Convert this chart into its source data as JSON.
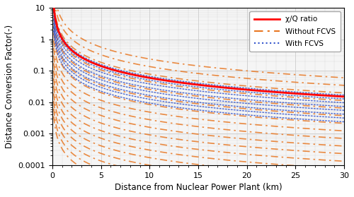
{
  "title": "",
  "xlabel": "Distance from Nuclear Power Plant (km)",
  "ylabel": "Distance Conversion Factor(-)",
  "xlim": [
    0,
    30
  ],
  "ylim_log": [
    0.0001,
    10
  ],
  "x_ticks": [
    0,
    5,
    10,
    15,
    20,
    25,
    30
  ],
  "chi_q_color": "#ff0000",
  "without_fcvs_color": "#e87722",
  "with_fcvs_color": "#3355cc",
  "legend_labels": [
    "χ/Q ratio",
    "Without FCVS",
    "With FCVS"
  ],
  "background_color": "#ffffff",
  "grid_color": "#cccccc",
  "chi_q_params": {
    "A": 1.05,
    "n": 1.25
  },
  "n_without": 18,
  "n_with": 8,
  "without_log_range": [
    -3.5,
    0.6
  ],
  "with_log_range": [
    -0.8,
    0.05
  ]
}
